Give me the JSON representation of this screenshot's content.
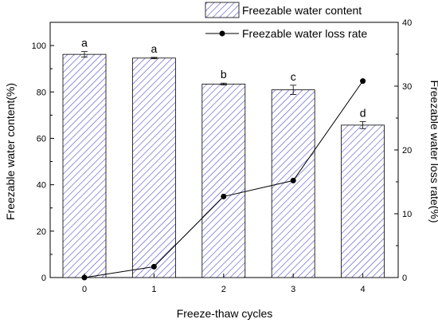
{
  "chart_data": {
    "type": "bar",
    "categories": [
      "0",
      "1",
      "2",
      "3",
      "4"
    ],
    "xlabel": "Freeze-thaw cycles",
    "ylabel_left": "Freezable water content(%)",
    "ylabel_right": "Freezable water loss rate(%)",
    "ylim_left": [
      0,
      110
    ],
    "ylim_right": [
      0,
      40
    ],
    "yticks_left": [
      "0",
      "20",
      "40",
      "60",
      "80",
      "100"
    ],
    "yticks_right": [
      "0",
      "10",
      "20",
      "30",
      "40"
    ],
    "series": [
      {
        "name": "Freezable water content",
        "type": "bar",
        "axis": "left",
        "values": [
          96.2,
          94.6,
          83.4,
          80.9,
          65.7
        ],
        "errors": [
          1.2,
          0.3,
          0.4,
          2.0,
          1.5
        ],
        "significance": [
          "a",
          "a",
          "b",
          "c",
          "d"
        ],
        "color": "#6c6cd6"
      },
      {
        "name": "Freezable water loss rate",
        "type": "line",
        "axis": "right",
        "values": [
          0,
          1.7,
          12.7,
          15.2,
          30.8
        ],
        "color": "#000000"
      }
    ],
    "legend_position": "top-right",
    "grid": false
  }
}
